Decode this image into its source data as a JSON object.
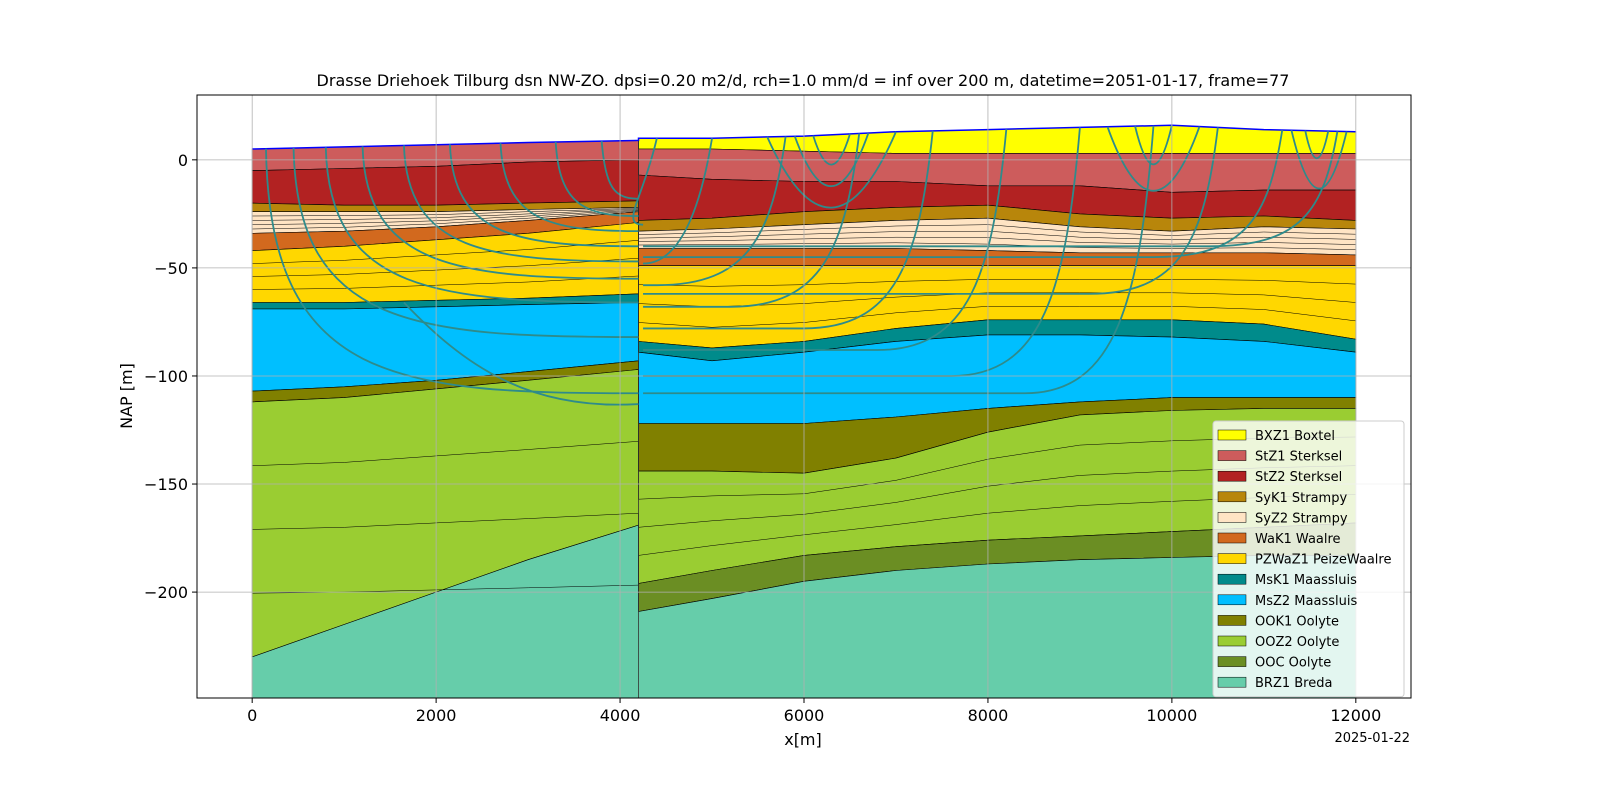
{
  "chart_data": {
    "type": "area",
    "title": "Drasse Driehoek Tilburg dsn NW-ZO. dpsi=0.20 m2/d, rch=1.0 mm/d = inf over 200 m, datetime=2051-01-17, frame=77",
    "xlabel": "x[m]",
    "ylabel": "NAP [m]",
    "xlim": [
      -600,
      12600
    ],
    "ylim": [
      -249,
      30
    ],
    "xticks": [
      0,
      2000,
      4000,
      6000,
      8000,
      10000,
      12000
    ],
    "yticks": [
      0,
      -50,
      -100,
      -150,
      -200
    ],
    "xtick_labels": [
      "0",
      "2000",
      "4000",
      "6000",
      "8000",
      "10000",
      "12000"
    ],
    "ytick_labels": [
      "0",
      "−50",
      "−100",
      "−150",
      "−200"
    ],
    "grid": true,
    "legend_position": "lower-right",
    "date_stamp": "2025-01-22",
    "x": [
      0,
      1000,
      2000,
      3000,
      4200,
      4200,
      5000,
      6000,
      7000,
      8000,
      9000,
      10000,
      11000,
      12000
    ],
    "bottom": -249,
    "surface_line_color": "#0000ff",
    "layers": [
      {
        "name": "BXZ1 Boxtel",
        "color": "#ffff00",
        "top": [
          5,
          6,
          7,
          8,
          9,
          10,
          10,
          11,
          13,
          14,
          15,
          16,
          14,
          13
        ]
      },
      {
        "name": "StZ1 Sterksel",
        "color": "#cd5c5c",
        "top": [
          5,
          6,
          7,
          8,
          9,
          5,
          5,
          4,
          3,
          3,
          3,
          3,
          3,
          3
        ]
      },
      {
        "name": "StZ2 Sterksel",
        "color": "#b22222",
        "top": [
          -5,
          -4,
          -3,
          -1,
          0,
          -7,
          -9,
          -10,
          -10,
          -12,
          -12,
          -15,
          -14,
          -14
        ]
      },
      {
        "name": "SyK1 Strampy",
        "color": "#b8860b",
        "top": [
          -20,
          -21,
          -21,
          -20,
          -19,
          -28,
          -27,
          -24,
          -22,
          -21,
          -25,
          -27,
          -26,
          -28
        ]
      },
      {
        "name": "SyZ2 Strampy",
        "color": "#ffe4c4",
        "top": [
          -24,
          -24,
          -24,
          -23,
          -22,
          -33,
          -32,
          -30,
          -28,
          -27,
          -31,
          -33,
          -31,
          -32
        ]
      },
      {
        "name": "WaK1 Waalre",
        "color": "#d2691e",
        "top": [
          -34,
          -33,
          -31,
          -28,
          -24,
          -41,
          -41,
          -41,
          -41,
          -42,
          -43,
          -43,
          -43,
          -44
        ]
      },
      {
        "name": "PZWaZ1 PeizeWaalre",
        "color": "#ffd700",
        "top": [
          -42,
          -40,
          -37,
          -34,
          -29,
          -49,
          -49,
          -49,
          -49,
          -49,
          -49,
          -49,
          -49,
          -49
        ]
      },
      {
        "name": "MsK1 Maassluis",
        "color": "#008b8b",
        "top": [
          -66,
          -66,
          -65,
          -64,
          -62,
          -84,
          -87,
          -84,
          -78,
          -74,
          -74,
          -74,
          -76,
          -83
        ]
      },
      {
        "name": "MsZ2 Maassluis",
        "color": "#00bfff",
        "top": [
          -69,
          -69,
          -68,
          -67,
          -66,
          -89,
          -93,
          -89,
          -84,
          -81,
          -81,
          -82,
          -84,
          -89
        ]
      },
      {
        "name": "OOK1 Oolyte",
        "color": "#808000",
        "top": [
          -107,
          -105,
          -102,
          -98,
          -93,
          -122,
          -122,
          -122,
          -119,
          -115,
          -112,
          -110,
          -110,
          -110
        ]
      },
      {
        "name": "OOZ2 Oolyte",
        "color": "#9acd32",
        "top": [
          -112,
          -110,
          -106,
          -102,
          -97,
          -144,
          -144,
          -145,
          -138,
          -126,
          -118,
          -116,
          -115,
          -115
        ]
      },
      {
        "name": "OOC Oolyte",
        "color": "#6b8e23",
        "top": [
          -230,
          -230,
          -230,
          -230,
          -230,
          -196,
          -190,
          -183,
          -179,
          -176,
          -174,
          -172,
          -170,
          -168
        ]
      },
      {
        "name": "BRZ1 Breda",
        "color": "#66cdaa",
        "top": [
          -230,
          -215,
          -200,
          -185,
          -169,
          -209,
          -203,
          -195,
          -190,
          -187,
          -185,
          -184,
          -183,
          -183
        ]
      }
    ],
    "streamline_color": "#2e8b8b"
  }
}
